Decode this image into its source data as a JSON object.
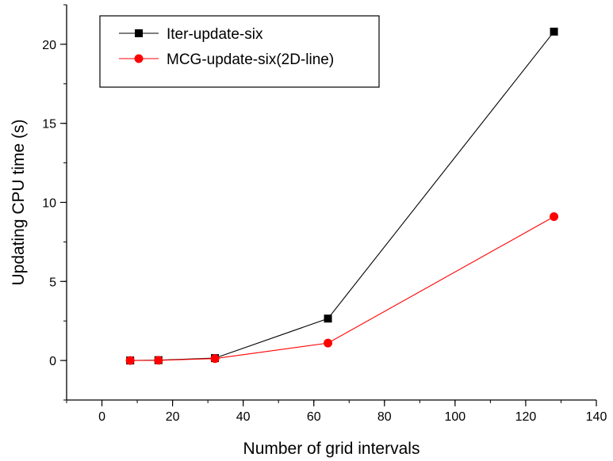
{
  "chart_data": {
    "type": "line",
    "xlabel": "Number of grid intervals",
    "ylabel": "Updating CPU time (s)",
    "xlim": [
      -10,
      140
    ],
    "ylim": [
      -2.5,
      22.5
    ],
    "xticks": [
      0,
      20,
      40,
      60,
      80,
      100,
      120,
      140
    ],
    "yticks": [
      0,
      5,
      10,
      15,
      20
    ],
    "x_minor_step": 10,
    "y_minor_step": 2.5,
    "grid": false,
    "legend_position": "top-left",
    "series": [
      {
        "name": "Iter-update-six",
        "color": "#000000",
        "marker": "square",
        "x": [
          8,
          16,
          32,
          64,
          128
        ],
        "y": [
          0.0,
          0.02,
          0.15,
          2.65,
          20.8
        ]
      },
      {
        "name": "MCG-update-six(2D-line)",
        "color": "#ff0000",
        "marker": "circle",
        "x": [
          8,
          16,
          32,
          64,
          128
        ],
        "y": [
          0.0,
          0.01,
          0.12,
          1.1,
          9.1
        ]
      }
    ]
  }
}
